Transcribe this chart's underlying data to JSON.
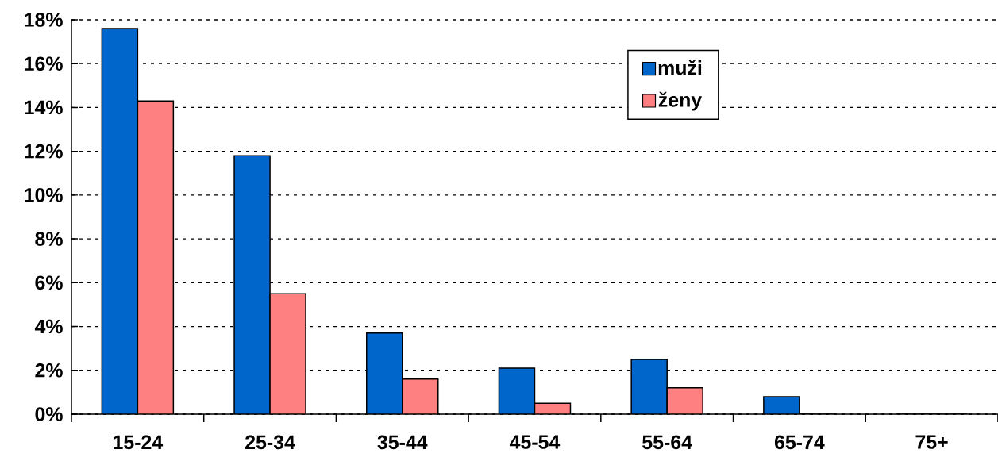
{
  "chart_data": {
    "type": "bar",
    "categories": [
      "15-24",
      "25-34",
      "35-44",
      "45-54",
      "55-64",
      "65-74",
      "75+"
    ],
    "series": [
      {
        "name": "muži",
        "color": "#0066cc",
        "values": [
          17.6,
          11.8,
          3.7,
          2.1,
          2.5,
          0.8,
          0
        ]
      },
      {
        "name": "ženy",
        "color": "#ff8080",
        "values": [
          14.3,
          5.5,
          1.6,
          0.5,
          1.2,
          0,
          0
        ]
      }
    ],
    "ylim": [
      0,
      18
    ],
    "yticks": [
      {
        "value": 0,
        "label": "0%"
      },
      {
        "value": 2,
        "label": "2%"
      },
      {
        "value": 4,
        "label": "4%"
      },
      {
        "value": 6,
        "label": "6%"
      },
      {
        "value": 8,
        "label": "8%"
      },
      {
        "value": 10,
        "label": "10%"
      },
      {
        "value": 12,
        "label": "12%"
      },
      {
        "value": 14,
        "label": "14%"
      },
      {
        "value": 16,
        "label": "16%"
      },
      {
        "value": 18,
        "label": "18%"
      }
    ],
    "grid": "y",
    "legend": "top right"
  }
}
